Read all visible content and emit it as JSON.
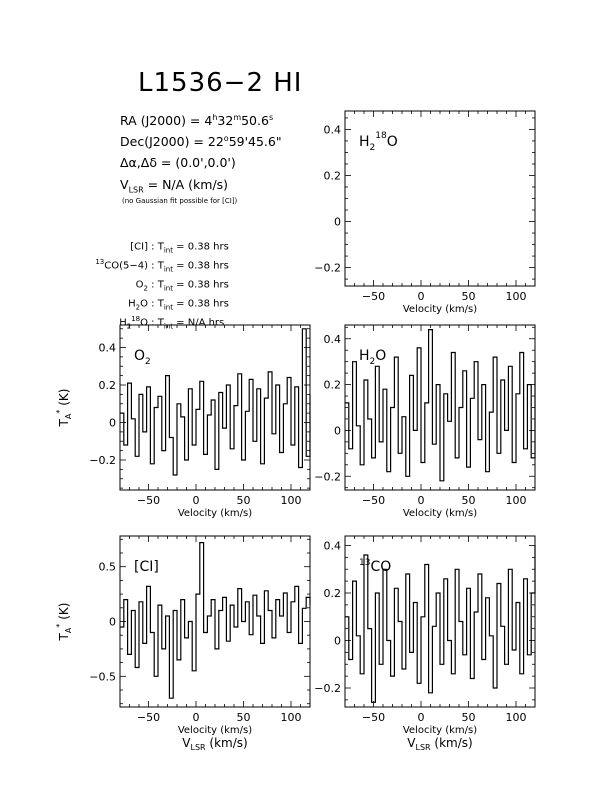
{
  "title": "L1536−2 HI",
  "info": {
    "ra_prefix": "RA (J2000) = 4",
    "ra_h": "h",
    "ra_mid": "32",
    "ra_m": "m",
    "ra_end": "50.6",
    "ra_s": "s",
    "dec_prefix": "Dec(J2000) = 22",
    "dec_deg": "o",
    "dec_end": "59'45.6\"",
    "offset": "Δα,Δδ = (0.0',0.0')",
    "vlsr_v": "V",
    "vlsr_sub": "LSR",
    "vlsr_rest": " = N/A (km/s)",
    "note": "(no Gaussian fit possible for [CI])"
  },
  "integration": [
    {
      "pre": "",
      "sup": "",
      "mol": "[CI]",
      "mol_sub": "",
      "mol_sup": "",
      "mol_tail": "",
      "t": "T",
      "t_sub": "int",
      "value": " = 0.38 hrs"
    },
    {
      "pre": "",
      "sup": "13",
      "mol": "CO(5−4)",
      "mol_sub": "",
      "mol_sup": "",
      "mol_tail": "",
      "t": "T",
      "t_sub": "int",
      "value": " = 0.38 hrs"
    },
    {
      "pre": "",
      "sup": "",
      "mol": "O",
      "mol_sub": "2",
      "mol_sup": "",
      "mol_tail": "",
      "t": "T",
      "t_sub": "int",
      "value": " = 0.38 hrs"
    },
    {
      "pre": "",
      "sup": "",
      "mol": "H",
      "mol_sub": "2",
      "mol_sup": "",
      "mol_tail": "O",
      "t": "T",
      "t_sub": "int",
      "value": " = 0.38 hrs"
    },
    {
      "pre": "",
      "sup": "",
      "mol": "H",
      "mol_sub": "2",
      "mol_sup": "18",
      "mol_tail": "O",
      "t": "T",
      "t_sub": "int",
      "value": " = N/A hrs"
    }
  ],
  "axis_text": {
    "velocity": "Velocity (km/s)",
    "vlsr_v": "V",
    "vlsr_sub": "LSR",
    "vlsr_rest": " (km/s)",
    "ta_t": "T",
    "ta_sub": "A",
    "ta_sup": "*",
    "ta_rest": " (K)"
  },
  "chart_data": [
    {
      "id": "h2-18o",
      "type": "line",
      "label": "H",
      "label_sub": "2",
      "label_sup": "18",
      "label_tail": "O",
      "xlim": [
        -80,
        120
      ],
      "ylim": [
        -0.28,
        0.48
      ],
      "xticks": [
        -50,
        0,
        50,
        100
      ],
      "yticks": [
        -0.2,
        0,
        0.2,
        0.4
      ],
      "ytick_labels": [
        "−0.2",
        "0",
        "0.2",
        "0.4"
      ],
      "xtick_labels": [
        "−50",
        "0",
        "50",
        "100"
      ],
      "x": [],
      "y": []
    },
    {
      "id": "o2",
      "type": "line",
      "label": "O",
      "label_sub": "2",
      "label_sup": "",
      "label_tail": "",
      "xlim": [
        -80,
        120
      ],
      "ylim": [
        -0.36,
        0.52
      ],
      "xticks": [
        -50,
        0,
        50,
        100
      ],
      "yticks": [
        -0.2,
        0,
        0.2,
        0.4
      ],
      "ytick_labels": [
        "−0.2",
        "0",
        "0.2",
        "0.4"
      ],
      "xtick_labels": [
        "−50",
        "0",
        "50",
        "100"
      ],
      "x": [
        -80,
        -76,
        -72,
        -68,
        -64,
        -60,
        -56,
        -52,
        -48,
        -44,
        -40,
        -36,
        -32,
        -28,
        -24,
        -20,
        -16,
        -12,
        -8,
        -4,
        0,
        4,
        8,
        12,
        16,
        20,
        24,
        28,
        32,
        36,
        40,
        44,
        48,
        52,
        56,
        60,
        64,
        68,
        72,
        76,
        80,
        84,
        88,
        92,
        96,
        100,
        104,
        108,
        112,
        116,
        120
      ],
      "y": [
        0.05,
        -0.12,
        0.21,
        0.02,
        -0.18,
        0.15,
        -0.05,
        0.19,
        -0.22,
        0.08,
        0.14,
        -0.15,
        0.25,
        -0.08,
        -0.28,
        0.1,
        0.03,
        -0.2,
        0.18,
        -0.12,
        0.07,
        0.22,
        -0.17,
        0.04,
        0.12,
        -0.25,
        0.16,
        -0.03,
        0.2,
        -0.14,
        0.09,
        0.26,
        -0.2,
        0.06,
        0.23,
        -0.1,
        0.18,
        -0.22,
        0.13,
        0.27,
        -0.06,
        0.2,
        -0.16,
        0.1,
        0.24,
        -0.12,
        0.19,
        -0.24,
        0.5,
        -0.18,
        0.15
      ]
    },
    {
      "id": "h2o",
      "type": "line",
      "label": "H",
      "label_sub": "2",
      "label_sup": "",
      "label_tail": "O",
      "xlim": [
        -80,
        120
      ],
      "ylim": [
        -0.26,
        0.46
      ],
      "xticks": [
        -50,
        0,
        50,
        100
      ],
      "yticks": [
        -0.2,
        0,
        0.2,
        0.4
      ],
      "ytick_labels": [
        "−0.2",
        "0",
        "0.2",
        "0.4"
      ],
      "xtick_labels": [
        "−50",
        "0",
        "50",
        "100"
      ],
      "x": [
        -80,
        -76,
        -72,
        -68,
        -64,
        -60,
        -56,
        -52,
        -48,
        -44,
        -40,
        -36,
        -32,
        -28,
        -24,
        -20,
        -16,
        -12,
        -8,
        -4,
        0,
        4,
        8,
        12,
        16,
        20,
        24,
        28,
        32,
        36,
        40,
        44,
        48,
        52,
        56,
        60,
        64,
        68,
        72,
        76,
        80,
        84,
        88,
        92,
        96,
        100,
        104,
        108,
        112,
        116,
        120
      ],
      "y": [
        0.12,
        -0.08,
        0.3,
        0.02,
        -0.15,
        0.22,
        0.05,
        -0.12,
        0.28,
        -0.05,
        0.18,
        -0.18,
        0.1,
        0.32,
        -0.1,
        0.06,
        -0.2,
        0.24,
        0.0,
        0.36,
        -0.14,
        0.12,
        0.44,
        -0.06,
        0.2,
        -0.22,
        0.16,
        0.04,
        0.34,
        -0.12,
        0.1,
        0.26,
        -0.16,
        0.14,
        0.3,
        -0.04,
        0.2,
        -0.18,
        0.08,
        0.32,
        -0.1,
        0.22,
        0.0,
        0.28,
        -0.14,
        0.16,
        0.34,
        -0.08,
        0.2,
        -0.12,
        0.3
      ]
    },
    {
      "id": "ci",
      "type": "line",
      "label": "[CI]",
      "label_sub": "",
      "label_sup": "",
      "label_tail": "",
      "xlim": [
        -80,
        120
      ],
      "ylim": [
        -0.78,
        0.78
      ],
      "xticks": [
        -50,
        0,
        50,
        100
      ],
      "yticks": [
        -0.5,
        0,
        0.5
      ],
      "ytick_labels": [
        "−0.5",
        "0",
        "0.5"
      ],
      "xtick_labels": [
        "−50",
        "0",
        "50",
        "100"
      ],
      "x": [
        -80,
        -76,
        -72,
        -68,
        -64,
        -60,
        -56,
        -52,
        -48,
        -44,
        -40,
        -36,
        -32,
        -28,
        -24,
        -20,
        -16,
        -12,
        -8,
        -4,
        0,
        4,
        8,
        12,
        16,
        20,
        24,
        28,
        32,
        36,
        40,
        44,
        48,
        52,
        56,
        60,
        64,
        68,
        72,
        76,
        80,
        84,
        88,
        92,
        96,
        100,
        104,
        108,
        112,
        116,
        120
      ],
      "y": [
        -0.05,
        0.2,
        -0.3,
        0.1,
        -0.42,
        0.18,
        -0.2,
        0.32,
        -0.1,
        -0.5,
        0.15,
        -0.25,
        0.05,
        -0.7,
        0.1,
        -0.35,
        0.2,
        -0.15,
        0.0,
        -0.45,
        0.25,
        0.72,
        -0.1,
        0.05,
        0.2,
        -0.25,
        0.1,
        0.22,
        -0.18,
        0.15,
        -0.05,
        0.3,
        0.0,
        0.18,
        -0.12,
        0.24,
        0.05,
        -0.2,
        0.28,
        0.1,
        -0.15,
        0.2,
        0.05,
        0.26,
        -0.1,
        0.18,
        0.32,
        -0.2,
        0.12,
        0.22,
        0.15
      ]
    },
    {
      "id": "13co",
      "type": "line",
      "label": "CO",
      "label_pre_sup": "13",
      "label_sub": "",
      "label_sup": "",
      "label_tail": "",
      "xlim": [
        -80,
        120
      ],
      "ylim": [
        -0.28,
        0.44
      ],
      "xticks": [
        -50,
        0,
        50,
        100
      ],
      "yticks": [
        -0.2,
        0,
        0.2,
        0.4
      ],
      "ytick_labels": [
        "−0.2",
        "0",
        "0.2",
        "0.4"
      ],
      "xtick_labels": [
        "−50",
        "0",
        "50",
        "100"
      ],
      "x": [
        -80,
        -76,
        -72,
        -68,
        -64,
        -60,
        -56,
        -52,
        -48,
        -44,
        -40,
        -36,
        -32,
        -28,
        -24,
        -20,
        -16,
        -12,
        -8,
        -4,
        0,
        4,
        8,
        12,
        16,
        20,
        24,
        28,
        32,
        36,
        40,
        44,
        48,
        52,
        56,
        60,
        64,
        68,
        72,
        76,
        80,
        84,
        88,
        92,
        96,
        100,
        104,
        108,
        112,
        116,
        120
      ],
      "y": [
        0.1,
        -0.08,
        0.25,
        0.02,
        -0.14,
        0.36,
        0.05,
        -0.26,
        0.2,
        -0.1,
        0.3,
        0.0,
        -0.15,
        0.22,
        0.08,
        -0.12,
        0.28,
        -0.05,
        0.16,
        -0.18,
        0.1,
        0.32,
        -0.22,
        0.06,
        0.2,
        -0.1,
        0.26,
        0.0,
        -0.14,
        0.3,
        0.08,
        -0.06,
        0.22,
        -0.16,
        0.12,
        0.28,
        -0.08,
        0.18,
        0.02,
        -0.2,
        0.24,
        0.06,
        -0.1,
        0.3,
        -0.04,
        0.16,
        -0.14,
        0.26,
        -0.06,
        0.2,
        0.4
      ]
    }
  ]
}
